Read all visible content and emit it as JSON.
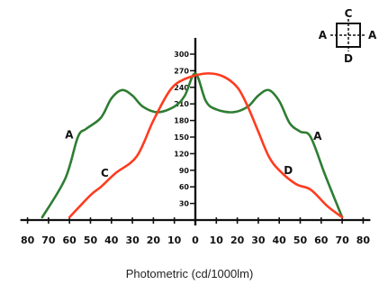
{
  "caption": "Photometric (cd/1000lm)",
  "colors": {
    "A": "#2e7d32",
    "C": "#ff3b1f",
    "axis": "#111111"
  },
  "legend": {
    "top": "C",
    "left": "A",
    "right": "A",
    "bottom": "D"
  },
  "annotations": [
    {
      "text": "A",
      "series": "A-A",
      "x": -55
    },
    {
      "text": "C",
      "series": "C-D",
      "x": -38
    },
    {
      "text": "D",
      "series": "C-D",
      "x": 40
    },
    {
      "text": "A",
      "series": "A-A",
      "x": 54
    }
  ],
  "chart_data": {
    "type": "line",
    "xlim": [
      -80,
      80
    ],
    "ylim": [
      0,
      300
    ],
    "x_ticks": [
      -80,
      -70,
      -60,
      -50,
      -40,
      -30,
      -20,
      -10,
      0,
      10,
      20,
      30,
      40,
      50,
      60,
      70,
      80
    ],
    "x_tick_labels": [
      "80",
      "70",
      "60",
      "50",
      "40",
      "30",
      "20",
      "10",
      "0",
      "10",
      "20",
      "30",
      "40",
      "50",
      "60",
      "70",
      "80"
    ],
    "y_ticks": [
      30,
      60,
      90,
      120,
      150,
      180,
      210,
      240,
      270,
      300
    ],
    "y_tick_labels": [
      "30",
      "60",
      "90",
      "120",
      "150",
      "180",
      "210",
      "240",
      "270",
      "300"
    ],
    "series": [
      {
        "name": "A-A",
        "color": "#2e7d32",
        "points": [
          [
            -73,
            5
          ],
          [
            -62,
            75
          ],
          [
            -56,
            150
          ],
          [
            -52,
            165
          ],
          [
            -45,
            185
          ],
          [
            -40,
            220
          ],
          [
            -35,
            235
          ],
          [
            -30,
            225
          ],
          [
            -25,
            205
          ],
          [
            -18,
            195
          ],
          [
            -10,
            205
          ],
          [
            -5,
            225
          ],
          [
            0,
            265
          ],
          [
            5,
            215
          ],
          [
            10,
            200
          ],
          [
            18,
            195
          ],
          [
            25,
            205
          ],
          [
            30,
            225
          ],
          [
            35,
            235
          ],
          [
            40,
            215
          ],
          [
            45,
            175
          ],
          [
            50,
            160
          ],
          [
            55,
            150
          ],
          [
            62,
            80
          ],
          [
            70,
            5
          ]
        ]
      },
      {
        "name": "C-D",
        "color": "#ff3b1f",
        "points": [
          [
            -60,
            5
          ],
          [
            -50,
            45
          ],
          [
            -45,
            60
          ],
          [
            -38,
            85
          ],
          [
            -28,
            115
          ],
          [
            -20,
            180
          ],
          [
            -12,
            235
          ],
          [
            -5,
            255
          ],
          [
            5,
            265
          ],
          [
            13,
            260
          ],
          [
            20,
            240
          ],
          [
            25,
            205
          ],
          [
            30,
            160
          ],
          [
            35,
            115
          ],
          [
            40,
            90
          ],
          [
            48,
            65
          ],
          [
            55,
            55
          ],
          [
            63,
            25
          ],
          [
            70,
            5
          ]
        ]
      }
    ]
  }
}
